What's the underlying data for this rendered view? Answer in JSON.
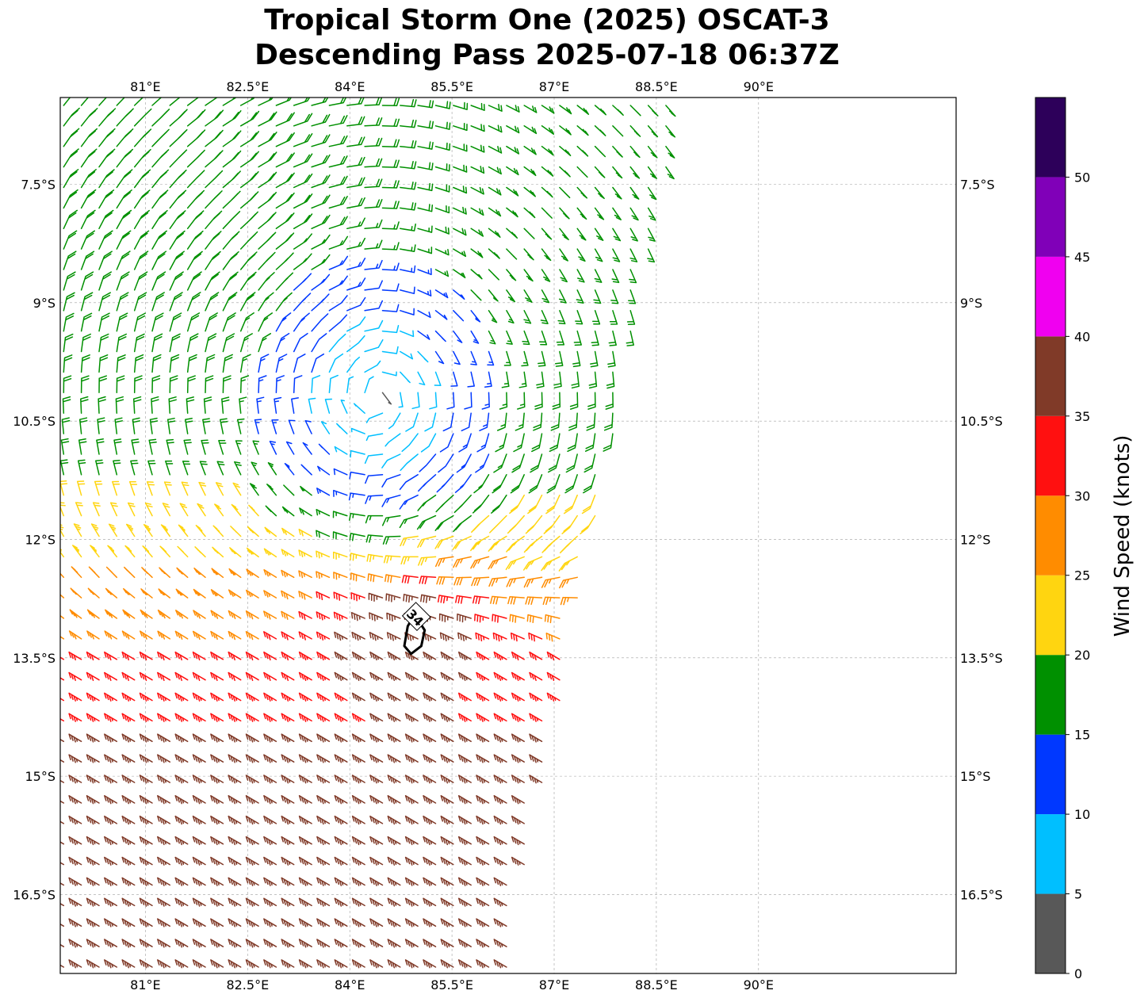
{
  "title": {
    "line1": "Tropical Storm One (2025) OSCAT-3",
    "line2": "Descending Pass 2025-07-18 06:37Z"
  },
  "map": {
    "lon_range": [
      79.75,
      92.9
    ],
    "lat_range": [
      -17.5,
      -6.4
    ],
    "lon_ticks": [
      {
        "value": 81.0,
        "label": "81°E"
      },
      {
        "value": 82.5,
        "label": "82.5°E"
      },
      {
        "value": 84.0,
        "label": "84°E"
      },
      {
        "value": 85.5,
        "label": "85.5°E"
      },
      {
        "value": 87.0,
        "label": "87°E"
      },
      {
        "value": 88.5,
        "label": "88.5°E"
      },
      {
        "value": 90.0,
        "label": "90°E"
      }
    ],
    "lat_ticks": [
      {
        "value": -7.5,
        "label": "7.5°S"
      },
      {
        "value": -9.0,
        "label": "9°S"
      },
      {
        "value": -10.5,
        "label": "10.5°S"
      },
      {
        "value": -12.0,
        "label": "12°S"
      },
      {
        "value": -13.5,
        "label": "13.5°S"
      },
      {
        "value": -15.0,
        "label": "15°S"
      },
      {
        "value": -16.5,
        "label": "16.5°S"
      }
    ],
    "gridlines": true,
    "gridline_color": "#a0a0a0"
  },
  "storm": {
    "center_lon": 84.4,
    "center_lat": -10.2,
    "max_wind_lon": 84.9,
    "max_wind_lat": -13.2
  },
  "swath": {
    "nw_lon": 79.75,
    "nw_lat": -6.4,
    "ne_lon": 88.85,
    "ne_lat": -6.4,
    "se_lon": 86.3,
    "se_lat": -17.5,
    "sw_lon": 79.75,
    "sw_lat": -17.5
  },
  "contour": {
    "label": "34",
    "lons": [
      84.95,
      85.1,
      85.05,
      84.9,
      84.8,
      84.85,
      84.95
    ],
    "lats": [
      -12.95,
      -13.15,
      -13.35,
      -13.45,
      -13.35,
      -13.1,
      -12.95
    ]
  },
  "colorbar": {
    "label": "Wind Speed (knots)",
    "levels": [
      0,
      5,
      10,
      15,
      20,
      25,
      30,
      35,
      40,
      45,
      50,
      55
    ],
    "tick_labels": [
      "0",
      "5",
      "10",
      "15",
      "20",
      "25",
      "30",
      "35",
      "40",
      "45",
      "50"
    ],
    "colors": [
      "#585858",
      "#00bfff",
      "#0038ff",
      "#009000",
      "#ffd510",
      "#ff8c00",
      "#ff1010",
      "#803a28",
      "#f000f0",
      "#8000b8",
      "#2d005a"
    ]
  }
}
